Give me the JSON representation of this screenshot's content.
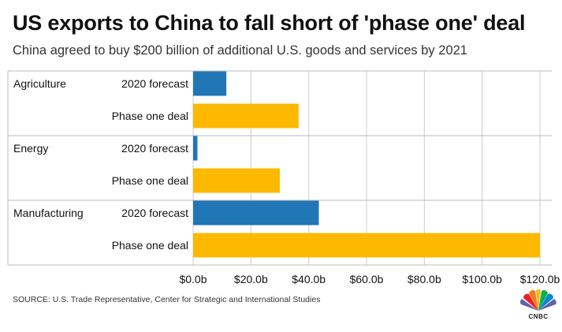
{
  "header": {
    "title": "US exports to China to fall short of 'phase one' deal",
    "subtitle": "China agreed to buy $200 billion of additional U.S. goods and services by 2021"
  },
  "footer": {
    "source": "SOURCE: U.S. Trade Representative, Center for Strategic and International Studies",
    "logo_text": "CNBC",
    "logo_icon": "nbc-peacock-icon"
  },
  "colors": {
    "forecast": "#2176b6",
    "deal": "#fcb900",
    "grid": "#cccccc",
    "section_border": "#bbbbbb"
  },
  "chart_data": {
    "type": "bar",
    "orientation": "horizontal",
    "title": "US exports to China to fall short of 'phase one' deal",
    "subtitle": "China agreed to buy $200 billion of additional U.S. goods and services by 2021",
    "groups": [
      {
        "name": "Agriculture",
        "bars": [
          {
            "label": "2020 forecast",
            "value": 11.5,
            "color": "#2176b6"
          },
          {
            "label": "Phase one deal",
            "value": 36.5,
            "color": "#fcb900"
          }
        ]
      },
      {
        "name": "Energy",
        "bars": [
          {
            "label": "2020 forecast",
            "value": 1.5,
            "color": "#2176b6"
          },
          {
            "label": "Phase one deal",
            "value": 30,
            "color": "#fcb900"
          }
        ]
      },
      {
        "name": "Manufacturing",
        "bars": [
          {
            "label": "2020 forecast",
            "value": 43.5,
            "color": "#2176b6"
          },
          {
            "label": "Phase one deal",
            "value": 120,
            "color": "#fcb900"
          }
        ]
      }
    ],
    "xlim": [
      0,
      120
    ],
    "ticks": [
      0,
      20,
      40,
      60,
      80,
      100,
      120
    ],
    "tick_labels": [
      "$0.0b",
      "$20.0b",
      "$40.0b",
      "$60.0b",
      "$80.0b",
      "$100.0b",
      "$120.0b"
    ],
    "grid": true,
    "legend": "none"
  }
}
